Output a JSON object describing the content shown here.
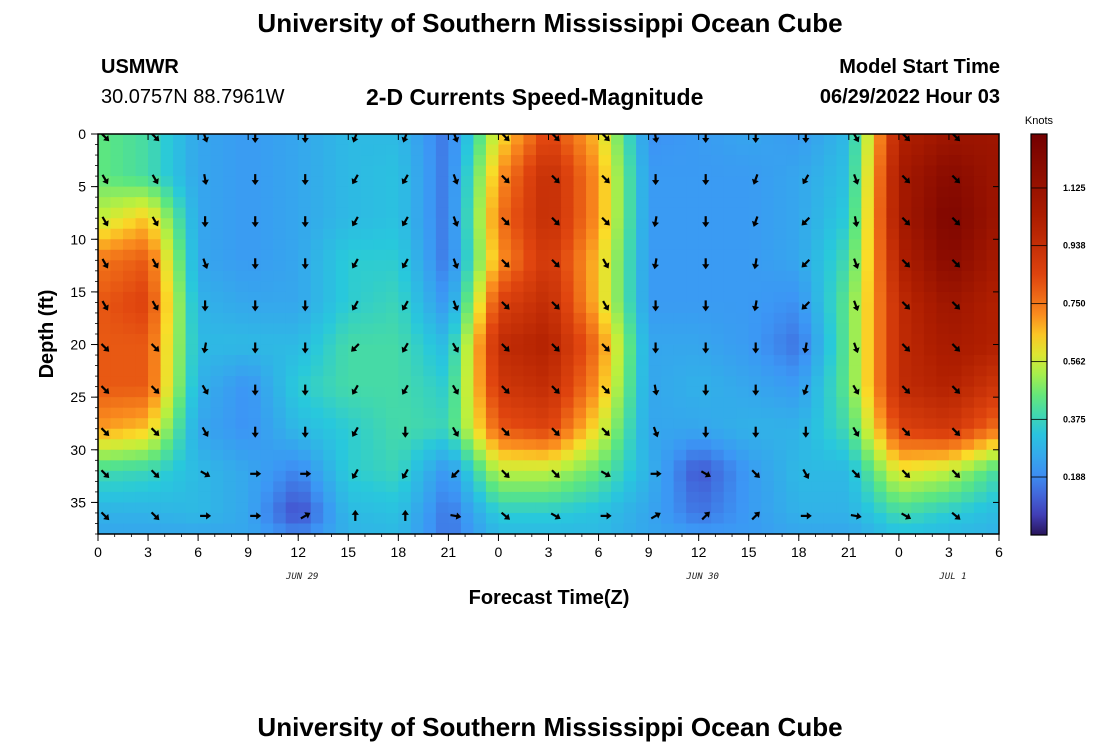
{
  "page": {
    "title_top": "University of Southern Mississippi Ocean Cube",
    "title_bottom": "University of Southern Mississippi Ocean Cube",
    "station": "USMWR",
    "coords": "30.0757N  88.7961W",
    "subtitle": "2-D Currents Speed-Magnitude",
    "model_label": "Model Start Time",
    "model_time": "06/29/2022 Hour 03"
  },
  "chart_data": {
    "type": "heatmap",
    "title": "2-D Currents Speed-Magnitude",
    "xlabel": "Forecast Time(Z)",
    "ylabel": "Depth (ft)",
    "x_range": [
      0,
      54
    ],
    "y_range": [
      0,
      38
    ],
    "x_ticks": [
      {
        "value": 0,
        "label": "0"
      },
      {
        "value": 3,
        "label": "3"
      },
      {
        "value": 6,
        "label": "6"
      },
      {
        "value": 9,
        "label": "9"
      },
      {
        "value": 12,
        "label": "12"
      },
      {
        "value": 15,
        "label": "15"
      },
      {
        "value": 18,
        "label": "18"
      },
      {
        "value": 21,
        "label": "21"
      },
      {
        "value": 24,
        "label": "0"
      },
      {
        "value": 27,
        "label": "3"
      },
      {
        "value": 30,
        "label": "6"
      },
      {
        "value": 33,
        "label": "9"
      },
      {
        "value": 36,
        "label": "12"
      },
      {
        "value": 39,
        "label": "15"
      },
      {
        "value": 42,
        "label": "18"
      },
      {
        "value": 45,
        "label": "21"
      },
      {
        "value": 48,
        "label": "0"
      },
      {
        "value": 51,
        "label": "3"
      },
      {
        "value": 54,
        "label": "6"
      }
    ],
    "y_ticks": [
      0,
      5,
      10,
      15,
      20,
      25,
      30,
      35
    ],
    "date_labels": [
      {
        "value": 12,
        "label": "JUN 29"
      },
      {
        "value": 36,
        "label": "JUN 30"
      },
      {
        "value": 51,
        "label": "JUL 1"
      }
    ],
    "colorbar": {
      "unit": "Knots",
      "min": 0.0,
      "max": 1.3,
      "ticks": [
        "0.188",
        "0.375",
        "0.562",
        "0.750",
        "0.938",
        "1.125"
      ],
      "tick_values": [
        0.188,
        0.375,
        0.562,
        0.75,
        0.938,
        1.125
      ]
    },
    "time_columns": [
      0,
      3,
      6,
      9,
      12,
      15,
      18,
      21,
      24,
      27,
      30,
      33,
      36,
      39,
      42,
      45,
      48,
      51,
      54
    ],
    "depth_rows": [
      0,
      4,
      8,
      12,
      16,
      20,
      24,
      28,
      32,
      36,
      38
    ],
    "speed_knots": [
      [
        0.45,
        0.4,
        0.25,
        0.22,
        0.25,
        0.3,
        0.3,
        0.15,
        0.6,
        0.85,
        0.65,
        0.2,
        0.22,
        0.25,
        0.22,
        0.3,
        1.0,
        1.1,
        1.1
      ],
      [
        0.45,
        0.4,
        0.25,
        0.22,
        0.25,
        0.3,
        0.32,
        0.15,
        0.7,
        0.95,
        0.7,
        0.22,
        0.22,
        0.22,
        0.25,
        0.32,
        1.05,
        1.2,
        1.1
      ],
      [
        0.55,
        0.65,
        0.25,
        0.22,
        0.25,
        0.3,
        0.32,
        0.15,
        0.75,
        0.95,
        0.7,
        0.22,
        0.22,
        0.22,
        0.25,
        0.35,
        1.05,
        1.25,
        1.1
      ],
      [
        0.75,
        0.8,
        0.25,
        0.22,
        0.25,
        0.35,
        0.35,
        0.15,
        0.7,
        0.9,
        0.65,
        0.22,
        0.22,
        0.22,
        0.25,
        0.4,
        1.0,
        1.2,
        1.05
      ],
      [
        0.8,
        0.85,
        0.28,
        0.25,
        0.25,
        0.35,
        0.38,
        0.2,
        0.85,
        0.95,
        0.65,
        0.22,
        0.22,
        0.22,
        0.2,
        0.45,
        0.95,
        1.1,
        1.0
      ],
      [
        0.8,
        0.8,
        0.3,
        0.3,
        0.3,
        0.4,
        0.4,
        0.3,
        0.95,
        1.0,
        0.75,
        0.25,
        0.25,
        0.22,
        0.15,
        0.45,
        0.95,
        1.05,
        1.0
      ],
      [
        0.8,
        0.8,
        0.28,
        0.2,
        0.35,
        0.4,
        0.4,
        0.35,
        0.9,
        0.95,
        0.7,
        0.25,
        0.28,
        0.25,
        0.22,
        0.45,
        0.95,
        1.0,
        0.9
      ],
      [
        0.7,
        0.65,
        0.25,
        0.2,
        0.3,
        0.35,
        0.4,
        0.38,
        0.8,
        0.85,
        0.6,
        0.25,
        0.25,
        0.28,
        0.28,
        0.4,
        0.85,
        0.9,
        0.75
      ],
      [
        0.4,
        0.38,
        0.3,
        0.25,
        0.18,
        0.35,
        0.38,
        0.2,
        0.55,
        0.55,
        0.45,
        0.28,
        0.1,
        0.22,
        0.3,
        0.3,
        0.6,
        0.55,
        0.4
      ],
      [
        0.28,
        0.28,
        0.3,
        0.25,
        0.08,
        0.3,
        0.32,
        0.15,
        0.35,
        0.35,
        0.32,
        0.25,
        0.15,
        0.22,
        0.28,
        0.28,
        0.4,
        0.35,
        0.3
      ],
      [
        0.25,
        0.25,
        0.25,
        0.25,
        0.18,
        0.28,
        0.3,
        0.15,
        0.3,
        0.3,
        0.3,
        0.25,
        0.22,
        0.22,
        0.25,
        0.25,
        0.32,
        0.3,
        0.28
      ]
    ],
    "arrow_time_columns": [
      0,
      3,
      6,
      9,
      12,
      15,
      18,
      21,
      24,
      27,
      30,
      33,
      36,
      39,
      42,
      45,
      48,
      51
    ],
    "arrow_depth_rows": [
      0,
      4,
      8,
      12,
      16,
      20,
      24,
      28,
      32,
      36
    ],
    "arrow_direction_deg": [
      [
        135,
        135,
        160,
        180,
        180,
        200,
        200,
        160,
        135,
        135,
        135,
        170,
        180,
        180,
        180,
        150,
        135,
        135
      ],
      [
        150,
        150,
        170,
        180,
        180,
        210,
        210,
        160,
        135,
        135,
        135,
        180,
        180,
        200,
        210,
        160,
        135,
        135
      ],
      [
        150,
        150,
        180,
        180,
        180,
        210,
        210,
        160,
        135,
        135,
        135,
        190,
        180,
        200,
        225,
        170,
        135,
        135
      ],
      [
        150,
        150,
        160,
        180,
        180,
        210,
        210,
        160,
        135,
        135,
        150,
        190,
        180,
        190,
        225,
        160,
        135,
        135
      ],
      [
        150,
        150,
        180,
        180,
        180,
        210,
        210,
        160,
        135,
        135,
        150,
        180,
        180,
        190,
        225,
        160,
        135,
        135
      ],
      [
        135,
        135,
        190,
        180,
        180,
        225,
        210,
        150,
        135,
        135,
        135,
        180,
        180,
        180,
        190,
        160,
        135,
        135
      ],
      [
        135,
        135,
        150,
        180,
        180,
        210,
        210,
        150,
        135,
        135,
        135,
        170,
        180,
        180,
        200,
        150,
        135,
        135
      ],
      [
        135,
        135,
        150,
        180,
        180,
        210,
        180,
        150,
        135,
        135,
        135,
        160,
        180,
        180,
        180,
        150,
        135,
        135
      ],
      [
        135,
        135,
        120,
        90,
        90,
        210,
        210,
        225,
        135,
        135,
        120,
        90,
        120,
        135,
        150,
        135,
        135,
        135
      ],
      [
        135,
        135,
        90,
        90,
        60,
        0,
        0,
        100,
        130,
        120,
        90,
        60,
        45,
        45,
        90,
        100,
        120,
        130
      ]
    ]
  }
}
